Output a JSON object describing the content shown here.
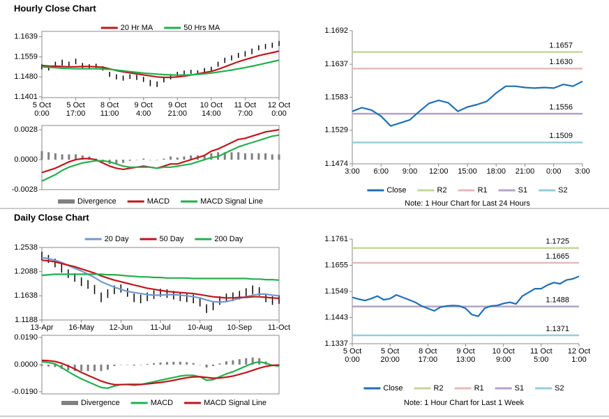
{
  "chart_data": [
    {
      "type": "line",
      "title": "Hourly Close Chart",
      "categories": [
        "5 Oct\n0:00",
        null,
        null,
        null,
        null,
        "5 Oct\n17:00",
        null,
        null,
        null,
        null,
        "8 Oct\n11:00",
        null,
        null,
        null,
        null,
        "9 Oct\n4:00",
        null,
        null,
        null,
        null,
        "9 Oct\n21:00",
        null,
        null,
        null,
        null,
        "10 Oct\n14:00",
        null,
        null,
        null,
        null,
        "11 Oct\n7:00",
        null,
        null,
        null,
        null,
        "12 Oct\n0:00"
      ],
      "ylim": [
        1.1398,
        1.166
      ],
      "yticks": [
        {
          "value": 1.1401,
          "label": "1.1401"
        },
        {
          "value": 1.148,
          "label": "1.1480"
        },
        1.1559,
        1.1639
      ],
      "series": [
        {
          "type": "range",
          "color": "#000000",
          "high": [
            1.153,
            1.1525,
            1.154,
            1.1548,
            1.154,
            1.1552,
            1.1535,
            1.153,
            1.1532,
            1.1522,
            1.15,
            1.149,
            1.1485,
            1.149,
            1.1488,
            1.148,
            1.1468,
            1.1462,
            1.1478,
            1.149,
            1.15,
            1.1505,
            1.1508,
            1.1506,
            1.1515,
            1.152,
            1.154,
            1.1556,
            1.1565,
            1.1575,
            1.1582,
            1.1592,
            1.1605,
            1.161,
            1.1615,
            1.1622
          ],
          "low": [
            1.151,
            1.1505,
            1.1515,
            1.1525,
            1.152,
            1.153,
            1.1515,
            1.151,
            1.1515,
            1.1505,
            1.148,
            1.147,
            1.1465,
            1.1472,
            1.1468,
            1.146,
            1.1443,
            1.144,
            1.1458,
            1.147,
            1.148,
            1.1485,
            1.1492,
            1.149,
            1.1495,
            1.15,
            1.152,
            1.1535,
            1.1545,
            1.1555,
            1.156,
            1.157,
            1.1585,
            1.159,
            1.1595,
            1.1602
          ]
        },
        {
          "name": "20 Hr MA",
          "type": "line",
          "color": "#c0161b",
          "values": [
            1.1525,
            1.1523,
            1.1522,
            1.1521,
            1.152,
            1.152,
            1.1521,
            1.1521,
            1.152,
            1.1518,
            1.1512,
            1.1505,
            1.15,
            1.1496,
            1.1492,
            1.1488,
            1.1484,
            1.148,
            1.1478,
            1.1478,
            1.148,
            1.1483,
            1.1487,
            1.1492,
            1.1497,
            1.1502,
            1.151,
            1.152,
            1.153,
            1.154,
            1.1548,
            1.1556,
            1.1564,
            1.157,
            1.1576,
            1.1582
          ]
        },
        {
          "name": "50 Hrs MA",
          "type": "line",
          "color": "#22b04b",
          "values": [
            1.152,
            1.1518,
            1.1516,
            1.1514,
            1.1513,
            1.1512,
            1.1512,
            1.1512,
            1.1512,
            1.1511,
            1.151,
            1.1507,
            1.1504,
            1.1501,
            1.1498,
            1.1495,
            1.1493,
            1.1491,
            1.1489,
            1.1488,
            1.1487,
            1.1487,
            1.1488,
            1.149,
            1.1492,
            1.1495,
            1.1499,
            1.1503,
            1.1507,
            1.1512,
            1.1517,
            1.1522,
            1.1528,
            1.1534,
            1.154,
            1.1546
          ]
        }
      ]
    },
    {
      "type": "line",
      "ylim": [
        -0.0028,
        0.0032
      ],
      "yticks": [
        -0.0028,
        {
          "value": 0,
          "label": "0.0000"
        },
        0.0028
      ],
      "series": [
        {
          "name": "Divergence",
          "type": "bar",
          "color": "#808080",
          "values": [
            0.0008,
            0.0007,
            0.0006,
            0.0005,
            0.0005,
            0.0005,
            0.0004,
            0.0003,
            0.0001,
            -0.0002,
            -0.0004,
            -0.0004,
            -0.0003,
            -0.0001,
            0,
            0.0001,
            0,
            0,
            0.0001,
            0.0003,
            0.0002,
            0.0003,
            0.0004,
            0.0004,
            0.0004,
            0.0006,
            0.0007,
            0.0007,
            0.0007,
            0.0007,
            0.0006,
            0.0006,
            0.0006,
            0.0006,
            0.0005,
            0.0005
          ]
        },
        {
          "name": "MACD",
          "type": "line",
          "color": "#c0161b",
          "values": [
            -0.0012,
            -0.001,
            -0.0008,
            -0.0005,
            -0.0002,
            0,
            0.0001,
            0.0001,
            0,
            -0.0003,
            -0.0006,
            -0.0008,
            -0.0009,
            -0.0008,
            -0.0007,
            -0.0006,
            -0.0007,
            -0.0008,
            -0.0006,
            -0.0004,
            -0.0004,
            -0.0002,
            0,
            0.0002,
            0.0004,
            0.0008,
            0.001,
            0.0013,
            0.0016,
            0.0019,
            0.002,
            0.0022,
            0.0024,
            0.0026,
            0.0027,
            0.0028
          ]
        },
        {
          "name": "MACD Signal Line",
          "type": "line",
          "color": "#22b04b",
          "values": [
            -0.002,
            -0.0017,
            -0.0014,
            -0.001,
            -0.0007,
            -0.0005,
            -0.0003,
            -0.0002,
            -0.0001,
            -0.0001,
            -0.0002,
            -0.0004,
            -0.0006,
            -0.0007,
            -0.0007,
            -0.0007,
            -0.0007,
            -0.0008,
            -0.0007,
            -0.0007,
            -0.0006,
            -0.0005,
            -0.0004,
            -0.0002,
            0,
            0.0002,
            0.0003,
            0.0006,
            0.0009,
            0.0012,
            0.0014,
            0.0016,
            0.0018,
            0.002,
            0.0022,
            0.0023
          ]
        }
      ]
    },
    {
      "type": "line",
      "note": "Note: 1 Hour Chart for Last 24 Hours",
      "categories": [
        "3:00",
        null,
        null,
        "6:00",
        null,
        null,
        "9:00",
        null,
        null,
        "12:00",
        null,
        null,
        "15:00",
        null,
        null,
        "18:00",
        null,
        null,
        "21:00",
        null,
        null,
        "0:00",
        null,
        null,
        "3:00"
      ],
      "ylim": [
        1.1474,
        1.1692
      ],
      "yticks": [
        1.1474,
        1.1529,
        1.1583,
        1.1637,
        1.1692
      ],
      "series": [
        {
          "name": "Close",
          "type": "line",
          "color": "#1f6fb4",
          "values": [
            1.156,
            1.1566,
            1.1562,
            1.1552,
            1.1536,
            1.1541,
            1.1546,
            1.156,
            1.1573,
            1.1578,
            1.1574,
            1.156,
            1.1567,
            1.1571,
            1.1576,
            1.159,
            1.1601,
            1.1601,
            1.1599,
            1.1598,
            1.1599,
            1.1598,
            1.1604,
            1.1601,
            1.1609
          ]
        },
        {
          "name": "R2",
          "type": "hline",
          "color": "#c3d69b",
          "value": 1.1657
        },
        {
          "name": "R1",
          "type": "hline",
          "color": "#e6b9b8",
          "value": 1.163,
          "value_label": "1.1630"
        },
        {
          "name": "S1",
          "type": "hline",
          "color": "#b3a2c7",
          "value": 1.1556
        },
        {
          "name": "S2",
          "type": "hline",
          "color": "#93cddd",
          "value": 1.1509
        }
      ]
    },
    {
      "type": "line",
      "title": "Daily Close Chart",
      "categories": [
        "13-Apr",
        null,
        null,
        null,
        null,
        null,
        "16-May",
        null,
        null,
        null,
        null,
        null,
        "12-Jun",
        null,
        null,
        null,
        null,
        null,
        "11-Jul",
        null,
        null,
        null,
        null,
        null,
        "10-Aug",
        null,
        null,
        null,
        null,
        null,
        "10-Sep",
        null,
        null,
        null,
        null,
        null,
        "11-Oct"
      ],
      "ylim": [
        1.1188,
        1.2538
      ],
      "yticks": [
        1.1188,
        1.1638,
        1.2088,
        1.2538
      ],
      "series": [
        {
          "type": "range",
          "color": "#000000",
          "high": [
            1.246,
            1.24,
            1.233,
            1.223,
            1.213,
            1.206,
            1.198,
            1.193,
            1.184,
            1.17,
            1.176,
            1.183,
            1.185,
            1.178,
            1.168,
            1.166,
            1.17,
            1.174,
            1.177,
            1.176,
            1.173,
            1.17,
            1.168,
            1.166,
            1.16,
            1.148,
            1.153,
            1.163,
            1.168,
            1.17,
            1.173,
            1.178,
            1.183,
            1.18,
            1.168,
            1.163,
            1.165
          ],
          "low": [
            1.23,
            1.225,
            1.217,
            1.207,
            1.197,
            1.19,
            1.182,
            1.177,
            1.167,
            1.152,
            1.16,
            1.167,
            1.17,
            1.162,
            1.152,
            1.15,
            1.154,
            1.158,
            1.162,
            1.16,
            1.157,
            1.154,
            1.152,
            1.15,
            1.144,
            1.132,
            1.137,
            1.147,
            1.152,
            1.154,
            1.157,
            1.162,
            1.167,
            1.164,
            1.152,
            1.147,
            1.149
          ]
        },
        {
          "name": "20 Day",
          "type": "line",
          "color": "#7199cf",
          "values": [
            1.235,
            1.233,
            1.23,
            1.226,
            1.22,
            1.215,
            1.21,
            1.204,
            1.198,
            1.19,
            1.185,
            1.18,
            1.176,
            1.172,
            1.17,
            1.168,
            1.166,
            1.165,
            1.165,
            1.166,
            1.166,
            1.165,
            1.164,
            1.162,
            1.16,
            1.156,
            1.153,
            1.152,
            1.153,
            1.156,
            1.159,
            1.162,
            1.165,
            1.167,
            1.167,
            1.165,
            1.164
          ]
        },
        {
          "name": "50 Day",
          "type": "line",
          "color": "#c0161b",
          "values": [
            1.23,
            1.229,
            1.227,
            1.224,
            1.221,
            1.218,
            1.214,
            1.21,
            1.206,
            1.201,
            1.197,
            1.193,
            1.19,
            1.187,
            1.184,
            1.181,
            1.178,
            1.176,
            1.174,
            1.172,
            1.171,
            1.17,
            1.169,
            1.168,
            1.166,
            1.164,
            1.162,
            1.161,
            1.16,
            1.16,
            1.161,
            1.161,
            1.162,
            1.162,
            1.161,
            1.16,
            1.159
          ]
        },
        {
          "name": "200 Day",
          "type": "line",
          "color": "#22b04b",
          "values": [
            1.202,
            1.203,
            1.204,
            1.204,
            1.204,
            1.204,
            1.204,
            1.204,
            1.204,
            1.204,
            1.203,
            1.203,
            1.202,
            1.201,
            1.2,
            1.199,
            1.199,
            1.198,
            1.198,
            1.197,
            1.197,
            1.197,
            1.197,
            1.196,
            1.196,
            1.196,
            1.196,
            1.196,
            1.196,
            1.196,
            1.196,
            1.196,
            1.195,
            1.195,
            1.194,
            1.194,
            1.193
          ]
        }
      ]
    },
    {
      "type": "line",
      "ylim": [
        -0.0205,
        0.0205
      ],
      "yticks": [
        {
          "value": -0.019,
          "label": "-0.0190"
        },
        {
          "value": 0,
          "label": "0.0000"
        },
        {
          "value": 0.019,
          "label": "0.0190"
        }
      ],
      "series": [
        {
          "name": "Divergence",
          "type": "bar",
          "color": "#808080",
          "values": [
            -0.001,
            -0.0013,
            -0.0017,
            -0.003,
            -0.004,
            -0.0045,
            -0.0045,
            -0.0045,
            -0.0045,
            -0.0045,
            -0.0035,
            -0.001,
            0,
            -0.0002,
            -0.0007,
            -0.0002,
            0.0005,
            0.001,
            0.0015,
            0.0018,
            0.002,
            0.002,
            0.0017,
            0.0011,
            0,
            -0.002,
            -0.001,
            0.0008,
            0.0023,
            0.003,
            0.0038,
            0.0045,
            0.005,
            0.0045,
            0.0022,
            0,
            -0.0007
          ]
        },
        {
          "name": "MACD",
          "type": "line",
          "color": "#22b04b",
          "values": [
            0.002,
            0.0015,
            0.0005,
            -0.002,
            -0.005,
            -0.0075,
            -0.01,
            -0.012,
            -0.014,
            -0.016,
            -0.0165,
            -0.015,
            -0.014,
            -0.014,
            -0.0145,
            -0.014,
            -0.013,
            -0.012,
            -0.011,
            -0.01,
            -0.009,
            -0.008,
            -0.0075,
            -0.0075,
            -0.0085,
            -0.011,
            -0.0105,
            -0.0085,
            -0.0065,
            -0.005,
            -0.003,
            -0.001,
            0.001,
            0.002,
            0.001,
            -0.0005,
            -0.001
          ]
        },
        {
          "name": "MACD Signal Line",
          "type": "line",
          "color": "#c0161b",
          "values": [
            0.003,
            0.0028,
            0.0022,
            0.001,
            -0.001,
            -0.003,
            -0.0055,
            -0.0075,
            -0.0095,
            -0.0115,
            -0.013,
            -0.014,
            -0.014,
            -0.0138,
            -0.0138,
            -0.0138,
            -0.0135,
            -0.013,
            -0.0125,
            -0.0118,
            -0.011,
            -0.01,
            -0.0092,
            -0.0086,
            -0.0085,
            -0.009,
            -0.0095,
            -0.0093,
            -0.0088,
            -0.008,
            -0.0068,
            -0.0055,
            -0.004,
            -0.0025,
            -0.0012,
            -0.0005,
            -0.0003
          ]
        }
      ]
    },
    {
      "type": "line",
      "note": "Note: 1 Hour Chart for Last 1 Week",
      "categories": [
        "5 Oct\n0:00",
        null,
        null,
        null,
        null,
        null,
        "5 Oct\n20:00",
        null,
        null,
        null,
        null,
        null,
        "8 Oct\n17:00",
        null,
        null,
        null,
        null,
        null,
        "9 Oct\n13:00",
        null,
        null,
        null,
        null,
        null,
        "10 Oct\n9:00",
        null,
        null,
        null,
        null,
        null,
        "11 Oct\n5:00",
        null,
        null,
        null,
        null,
        null,
        "12 Oct\n1:00"
      ],
      "ylim": [
        1.1337,
        1.1761
      ],
      "yticks": [
        1.1337,
        1.1443,
        1.1549,
        1.1655,
        1.1761
      ],
      "series": [
        {
          "name": "Close",
          "type": "line",
          "color": "#1f6fb4",
          "values": [
            1.1525,
            1.1518,
            1.1512,
            1.152,
            1.153,
            1.1515,
            1.152,
            1.1535,
            1.1525,
            1.1515,
            1.1505,
            1.149,
            1.148,
            1.147,
            1.1485,
            1.149,
            1.1492,
            1.149,
            1.148,
            1.1455,
            1.1448,
            1.148,
            1.149,
            1.1492,
            1.15,
            1.1505,
            1.1498,
            1.153,
            1.1545,
            1.156,
            1.156,
            1.1575,
            1.1585,
            1.158,
            1.1595,
            1.16,
            1.161
          ]
        },
        {
          "name": "R2",
          "type": "hline",
          "color": "#c3d69b",
          "value": 1.1725
        },
        {
          "name": "R1",
          "type": "hline",
          "color": "#e6b9b8",
          "value": 1.1665
        },
        {
          "name": "S1",
          "type": "hline",
          "color": "#b3a2c7",
          "value": 1.1488
        },
        {
          "name": "S2",
          "type": "hline",
          "color": "#93cddd",
          "value": 1.1371
        }
      ]
    }
  ]
}
